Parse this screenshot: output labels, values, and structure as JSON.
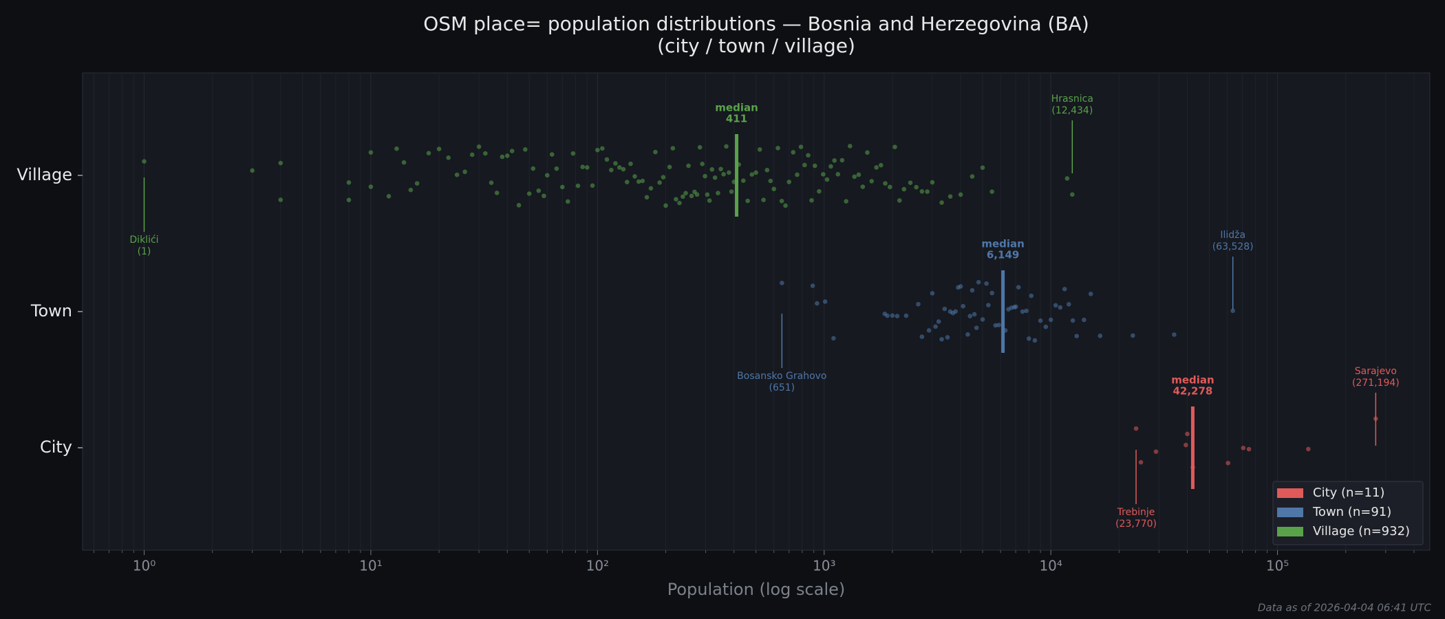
{
  "chart_data": {
    "type": "strip",
    "title": "OSM place= population distributions — Bosnia and Herzegovina (BA)",
    "subtitle": "(city / town / village)",
    "x_label": "Population (log scale)",
    "footnote": "Data as of 2026-04-04 06:41 UTC",
    "log_x": true,
    "grid": true,
    "legend_position": "lower right",
    "xlim": [
      0.535,
      470000
    ],
    "xticks": [
      {
        "value": 1,
        "label": "10⁰"
      },
      {
        "value": 10,
        "label": "10¹"
      },
      {
        "value": 100,
        "label": "10²"
      },
      {
        "value": 1000,
        "label": "10³"
      },
      {
        "value": 10000,
        "label": "10⁴"
      },
      {
        "value": 100000,
        "label": "10⁵"
      }
    ],
    "categories": [
      "City",
      "Town",
      "Village"
    ],
    "series": [
      {
        "name": "City  (n=11)",
        "color": "#e05a5a",
        "values": [
          23770,
          24960,
          29100,
          39400,
          40000,
          42278,
          60500,
          70600,
          74800,
          136700,
          271194
        ],
        "median_title": "median",
        "median": 42278,
        "median_label": "42,278",
        "annotations": [
          {
            "label": "Trebinje",
            "value": 23770,
            "value_label": "(23,770)"
          },
          {
            "label": "Sarajevo",
            "value": 271194,
            "value_label": "(271,194)"
          }
        ]
      },
      {
        "name": "Town  (n=91)",
        "color": "#4f77a8",
        "values": [
          651,
          890,
          930,
          1010,
          1100,
          1850,
          1900,
          2000,
          2100,
          2300,
          2600,
          2700,
          2900,
          3000,
          3100,
          3200,
          3300,
          3400,
          3500,
          3600,
          3700,
          3800,
          3900,
          4000,
          4100,
          4300,
          4400,
          4500,
          4600,
          4700,
          4800,
          5000,
          5200,
          5300,
          5500,
          5700,
          5900,
          6300,
          6500,
          6700,
          6900,
          7000,
          7200,
          7500,
          7800,
          8000,
          8200,
          8500,
          9000,
          9500,
          10000,
          10500,
          11000,
          11500,
          12000,
          12500,
          13000,
          14000,
          15000,
          16500,
          23000,
          35000,
          63528
        ],
        "median_title": "median",
        "median": 6149,
        "median_label": "6,149",
        "annotations": [
          {
            "label": "Bosansko Grahovo",
            "value": 651,
            "value_label": "(651)"
          },
          {
            "label": "Ilidža",
            "value": 63528,
            "value_label": "(63,528)"
          }
        ]
      },
      {
        "name": "Village  (n=932)",
        "color": "#5aa24a",
        "values": [
          1,
          3,
          4,
          4,
          8,
          8,
          10,
          10,
          12,
          13,
          14,
          15,
          16,
          18,
          20,
          22,
          24,
          26,
          28,
          30,
          32,
          34,
          36,
          38,
          40,
          42,
          45,
          48,
          50,
          52,
          55,
          58,
          60,
          63,
          66,
          70,
          74,
          78,
          82,
          86,
          90,
          95,
          100,
          105,
          110,
          115,
          120,
          125,
          130,
          135,
          140,
          146,
          152,
          158,
          165,
          172,
          180,
          188,
          195,
          200,
          208,
          215,
          222,
          230,
          238,
          245,
          252,
          260,
          268,
          275,
          283,
          290,
          298,
          305,
          312,
          320,
          330,
          340,
          350,
          360,
          370,
          380,
          390,
          400,
          420,
          440,
          460,
          480,
          500,
          520,
          540,
          560,
          580,
          600,
          625,
          650,
          675,
          700,
          730,
          760,
          790,
          820,
          850,
          880,
          910,
          950,
          990,
          1030,
          1070,
          1110,
          1150,
          1200,
          1250,
          1300,
          1360,
          1420,
          1480,
          1550,
          1620,
          1700,
          1780,
          1860,
          1950,
          2050,
          2150,
          2250,
          2400,
          2550,
          2700,
          2850,
          3000,
          3300,
          3600,
          4000,
          4500,
          5000,
          5500,
          11800,
          12434
        ],
        "median_title": "median",
        "median": 411,
        "median_label": "411",
        "annotations": [
          {
            "label": "Diklići",
            "value": 1,
            "value_label": "(1)"
          },
          {
            "label": "Hrasnica",
            "value": 12434,
            "value_label": "(12,434)"
          }
        ]
      }
    ]
  }
}
